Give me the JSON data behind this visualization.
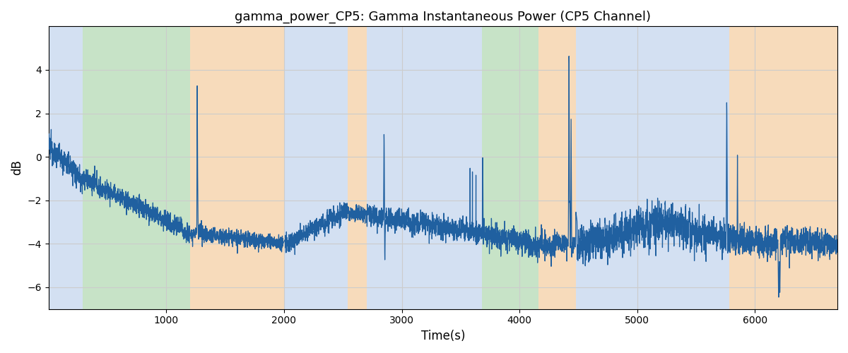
{
  "title": "gamma_power_CP5: Gamma Instantaneous Power (CP5 Channel)",
  "xlabel": "Time(s)",
  "ylabel": "dB",
  "xlim": [
    0,
    6700
  ],
  "ylim": [
    -7,
    6
  ],
  "figsize": [
    12,
    5
  ],
  "dpi": 100,
  "line_color": "#2060a0",
  "line_width": 0.9,
  "bg_color": "white",
  "grid_color": "#cccccc",
  "bands": [
    {
      "xmin": 0,
      "xmax": 290,
      "color": "#b0c8e8",
      "alpha": 0.55
    },
    {
      "xmin": 290,
      "xmax": 1200,
      "color": "#90c890",
      "alpha": 0.5
    },
    {
      "xmin": 1200,
      "xmax": 2000,
      "color": "#f0b878",
      "alpha": 0.5
    },
    {
      "xmin": 2000,
      "xmax": 2540,
      "color": "#b0c8e8",
      "alpha": 0.55
    },
    {
      "xmin": 2540,
      "xmax": 2700,
      "color": "#f0b878",
      "alpha": 0.5
    },
    {
      "xmin": 2700,
      "xmax": 3680,
      "color": "#b0c8e8",
      "alpha": 0.55
    },
    {
      "xmin": 3680,
      "xmax": 4160,
      "color": "#90c890",
      "alpha": 0.5
    },
    {
      "xmin": 4160,
      "xmax": 4480,
      "color": "#f0b878",
      "alpha": 0.5
    },
    {
      "xmin": 4480,
      "xmax": 5780,
      "color": "#b0c8e8",
      "alpha": 0.55
    },
    {
      "xmin": 5780,
      "xmax": 6700,
      "color": "#f0b878",
      "alpha": 0.5
    }
  ],
  "yticks": [
    -6,
    -4,
    -2,
    0,
    2,
    4
  ],
  "xticks": [
    1000,
    2000,
    3000,
    4000,
    5000,
    6000
  ]
}
